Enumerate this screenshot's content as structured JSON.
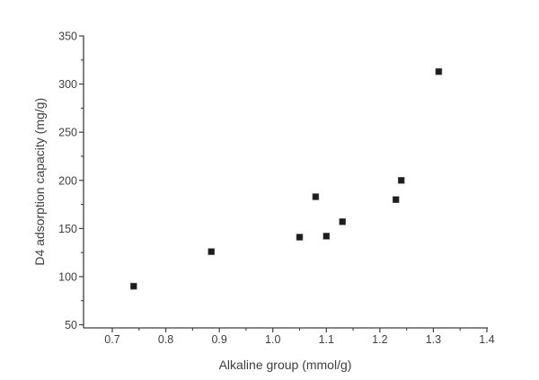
{
  "figure": {
    "background": "#ffffff",
    "axis_color": "#3f3f3f",
    "text_color": "#3f3f3f"
  },
  "chart_data": {
    "type": "scatter",
    "title": "",
    "xlabel": "Alkaline group (mmol/g)",
    "ylabel": "D4 adsorption capacity (mg/g)",
    "xlim": [
      0.645,
      1.4
    ],
    "ylim": [
      46,
      350
    ],
    "x_ticks": [
      0.7,
      0.8,
      0.9,
      1.0,
      1.1,
      1.2,
      1.3,
      1.4
    ],
    "x_tick_labels": [
      "0.7",
      "0.8",
      "0.9",
      "1.0",
      "1.1",
      "1.2",
      "1.3",
      "1.4"
    ],
    "y_ticks": [
      50,
      100,
      150,
      200,
      250,
      300,
      350
    ],
    "y_tick_labels": [
      "50",
      "100",
      "150",
      "200",
      "250",
      "300",
      "350"
    ],
    "minor_ticks": true,
    "grid": false,
    "legend": false,
    "marker": {
      "shape": "square",
      "color": "#1c1c1c",
      "size": 7
    },
    "series": [
      {
        "name": "D4 adsorption capacity",
        "points": [
          {
            "x": 0.74,
            "y": 90
          },
          {
            "x": 0.885,
            "y": 126
          },
          {
            "x": 1.05,
            "y": 141
          },
          {
            "x": 1.08,
            "y": 183
          },
          {
            "x": 1.1,
            "y": 142
          },
          {
            "x": 1.13,
            "y": 157
          },
          {
            "x": 1.23,
            "y": 180
          },
          {
            "x": 1.24,
            "y": 200
          },
          {
            "x": 1.31,
            "y": 313
          }
        ]
      }
    ]
  }
}
